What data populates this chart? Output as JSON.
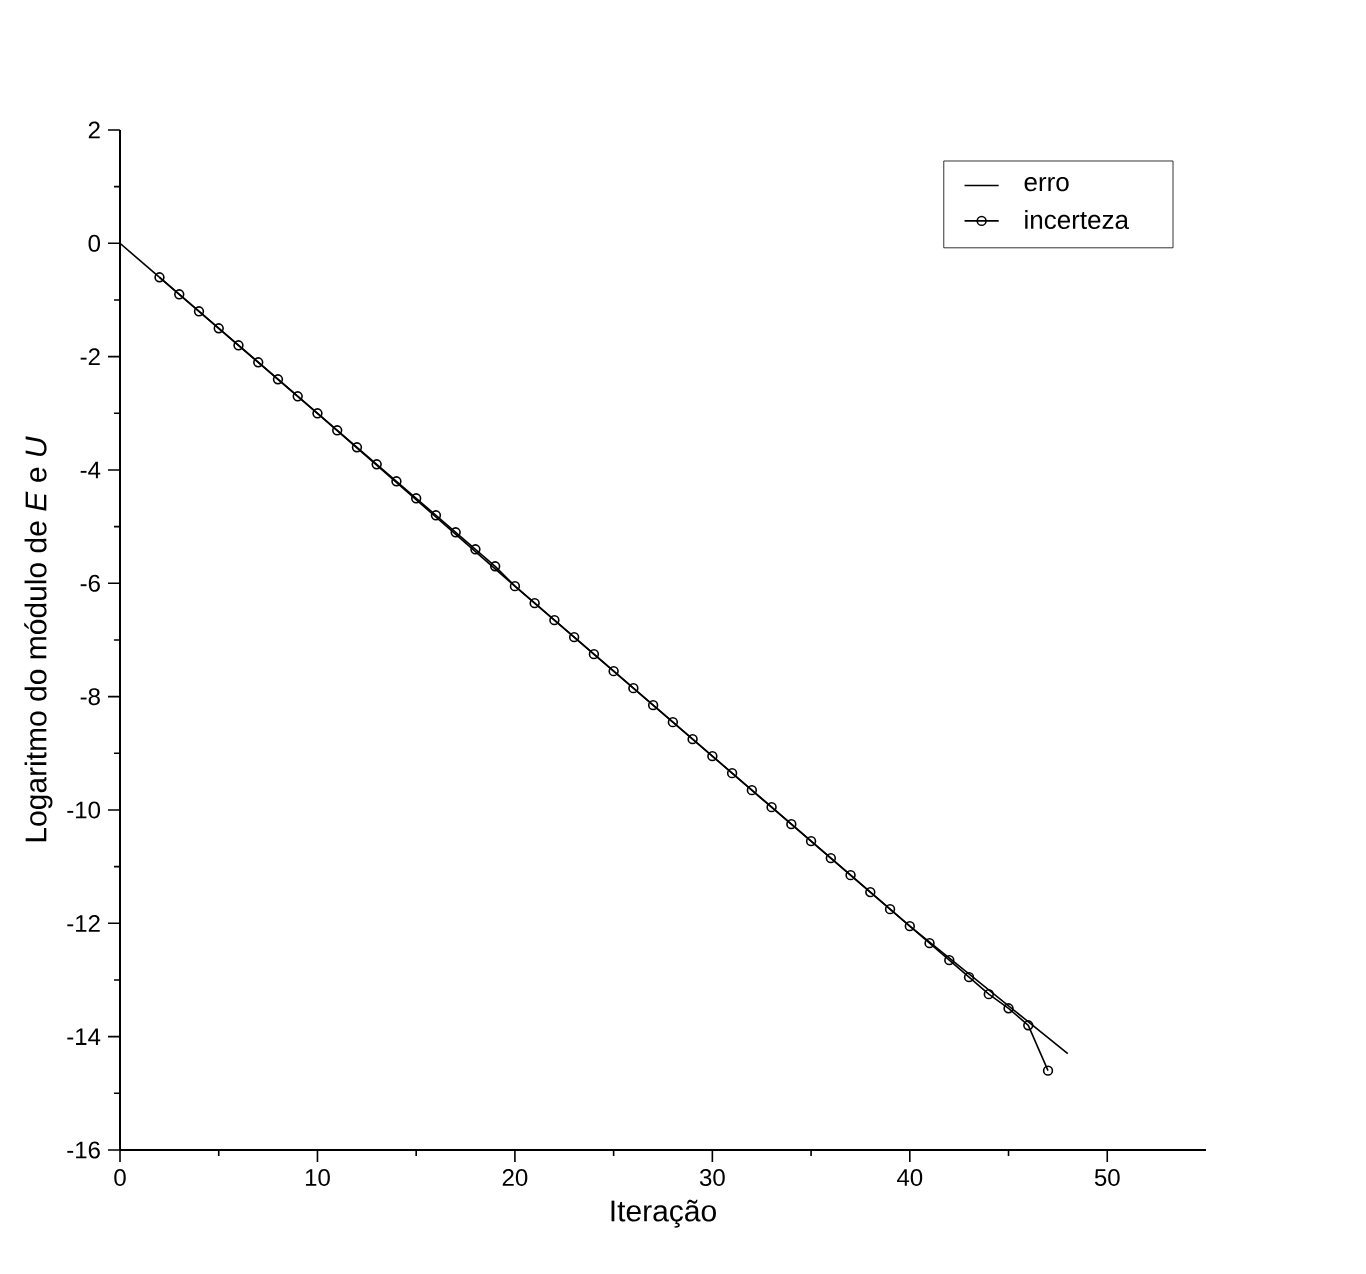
{
  "chart_data": {
    "type": "line",
    "xlabel": "Iteração",
    "ylabel": "Logaritmo do módulo de *E* e *U*",
    "xlim": [
      0,
      55
    ],
    "ylim": [
      -16,
      2
    ],
    "xticks": [
      0,
      10,
      20,
      30,
      40,
      50
    ],
    "yticks": [
      -16,
      -14,
      -12,
      -10,
      -8,
      -6,
      -4,
      -2,
      0,
      2
    ],
    "legend": "top right",
    "grid": false,
    "series": [
      {
        "name": "erro",
        "color": "#000000",
        "x": [
          0,
          10,
          20,
          30,
          40,
          48
        ],
        "values": [
          0,
          -3.0,
          -6.05,
          -9.05,
          -12.05,
          -14.3
        ]
      },
      {
        "name": "incerteza",
        "color": "#000000",
        "marker": "circle",
        "x": [
          2,
          3,
          4,
          5,
          6,
          7,
          8,
          9,
          10,
          11,
          12,
          13,
          14,
          15,
          16,
          17,
          18,
          19,
          20,
          21,
          22,
          23,
          24,
          25,
          26,
          27,
          28,
          29,
          30,
          31,
          32,
          33,
          34,
          35,
          36,
          37,
          38,
          39,
          40,
          41,
          42,
          43,
          44,
          45,
          46,
          47
        ],
        "values": [
          -0.6,
          -0.9,
          -1.2,
          -1.5,
          -1.8,
          -2.1,
          -2.4,
          -2.7,
          -3.0,
          -3.3,
          -3.6,
          -3.9,
          -4.2,
          -4.5,
          -4.8,
          -5.1,
          -5.4,
          -5.7,
          -6.05,
          -6.35,
          -6.65,
          -6.95,
          -7.25,
          -7.55,
          -7.85,
          -8.15,
          -8.45,
          -8.75,
          -9.05,
          -9.35,
          -9.65,
          -9.95,
          -10.25,
          -10.55,
          -10.85,
          -11.15,
          -11.45,
          -11.75,
          -12.05,
          -12.35,
          -12.65,
          -12.95,
          -13.25,
          -13.5,
          -13.8,
          -14.6
        ]
      }
    ]
  }
}
